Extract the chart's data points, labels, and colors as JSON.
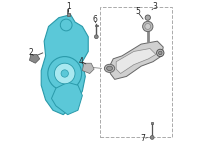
{
  "background_color": "#ffffff",
  "knuckle_color": "#5bc8d8",
  "knuckle_color_edge": "#2a9aaa",
  "part_color": "#888888",
  "part_edge": "#555555",
  "line_color": "#aaaaaa",
  "label_color": "#222222",
  "label_fontsize": 5.5
}
